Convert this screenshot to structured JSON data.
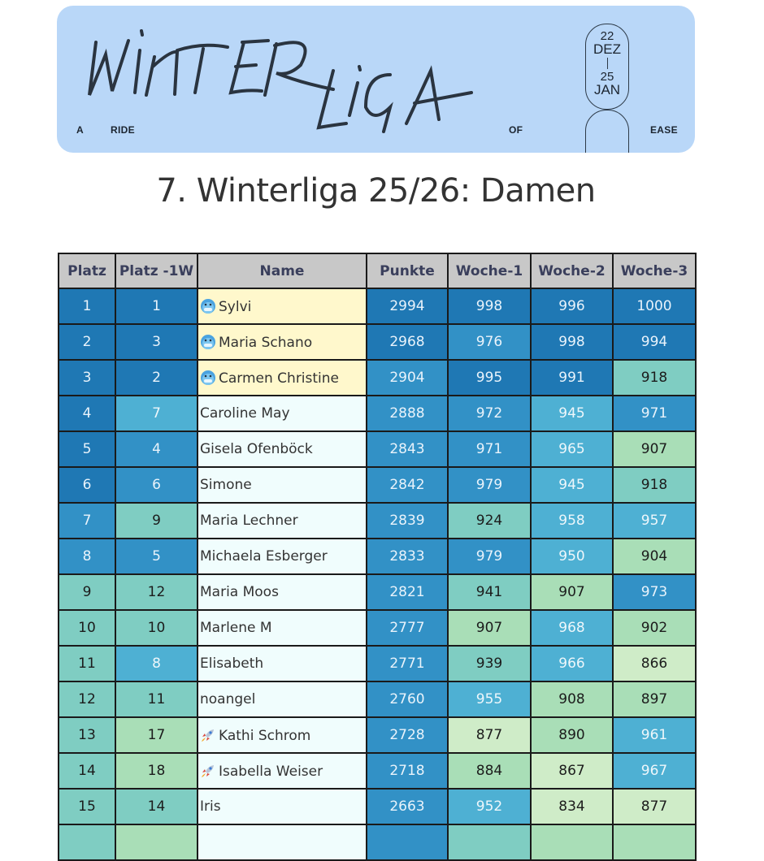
{
  "banner": {
    "logo_text": "WINTER LIGA",
    "tagline": [
      "A",
      "RIDE",
      "OF",
      "EASE"
    ],
    "date_start_day": "22",
    "date_start_month": "DEZ",
    "date_end_day": "25",
    "date_end_month": "JAN",
    "background": "#b9d7f8"
  },
  "title": "7. Winterliga 25/26: Damen",
  "table": {
    "headers": [
      "Platz",
      "Platz -1W",
      "Name",
      "Punkte",
      "Woche-1",
      "Woche-2",
      "Woche-3"
    ],
    "rows": [
      {
        "platz": "1",
        "prev": "1",
        "icon": "cold-face-icon",
        "name": "Sylvi",
        "punkte": "2994",
        "w1": "998",
        "w2": "996",
        "w3": "1000"
      },
      {
        "platz": "2",
        "prev": "3",
        "icon": "cold-face-icon",
        "name": "Maria Schano",
        "punkte": "2968",
        "w1": "976",
        "w2": "998",
        "w3": "994"
      },
      {
        "platz": "3",
        "prev": "2",
        "icon": "cold-face-icon",
        "name": "Carmen Christine",
        "punkte": "2904",
        "w1": "995",
        "w2": "991",
        "w3": "918"
      },
      {
        "platz": "4",
        "prev": "7",
        "icon": "",
        "name": "Caroline May",
        "punkte": "2888",
        "w1": "972",
        "w2": "945",
        "w3": "971"
      },
      {
        "platz": "5",
        "prev": "4",
        "icon": "",
        "name": "Gisela Ofenböck",
        "punkte": "2843",
        "w1": "971",
        "w2": "965",
        "w3": "907"
      },
      {
        "platz": "6",
        "prev": "6",
        "icon": "",
        "name": "Simone",
        "punkte": "2842",
        "w1": "979",
        "w2": "945",
        "w3": "918"
      },
      {
        "platz": "7",
        "prev": "9",
        "icon": "",
        "name": "Maria Lechner",
        "punkte": "2839",
        "w1": "924",
        "w2": "958",
        "w3": "957"
      },
      {
        "platz": "8",
        "prev": "5",
        "icon": "",
        "name": "Michaela Esberger",
        "punkte": "2833",
        "w1": "979",
        "w2": "950",
        "w3": "904"
      },
      {
        "platz": "9",
        "prev": "12",
        "icon": "",
        "name": "Maria Moos",
        "punkte": "2821",
        "w1": "941",
        "w2": "907",
        "w3": "973"
      },
      {
        "platz": "10",
        "prev": "10",
        "icon": "",
        "name": "Marlene M",
        "punkte": "2777",
        "w1": "907",
        "w2": "968",
        "w3": "902"
      },
      {
        "platz": "11",
        "prev": "8",
        "icon": "",
        "name": "Elisabeth",
        "punkte": "2771",
        "w1": "939",
        "w2": "966",
        "w3": "866"
      },
      {
        "platz": "12",
        "prev": "11",
        "icon": "",
        "name": "noangel",
        "punkte": "2760",
        "w1": "955",
        "w2": "908",
        "w3": "897"
      },
      {
        "platz": "13",
        "prev": "17",
        "icon": "rocket-icon",
        "name": "Kathi Schrom",
        "punkte": "2728",
        "w1": "877",
        "w2": "890",
        "w3": "961"
      },
      {
        "platz": "14",
        "prev": "18",
        "icon": "rocket-icon",
        "name": "Isabella Weiser",
        "punkte": "2718",
        "w1": "884",
        "w2": "867",
        "w3": "967"
      },
      {
        "platz": "15",
        "prev": "14",
        "icon": "",
        "name": "Iris",
        "punkte": "2663",
        "w1": "952",
        "w2": "834",
        "w3": "877"
      }
    ]
  },
  "colors": {
    "dark_blue": "#1f78b4",
    "blue": "#3291c6",
    "light_blue": "#4eb0d3",
    "teal": "#7fcdc2",
    "green": "#a9deb7",
    "pale_green": "#cfecc8",
    "highlight_yellow": "#fff8cc"
  }
}
